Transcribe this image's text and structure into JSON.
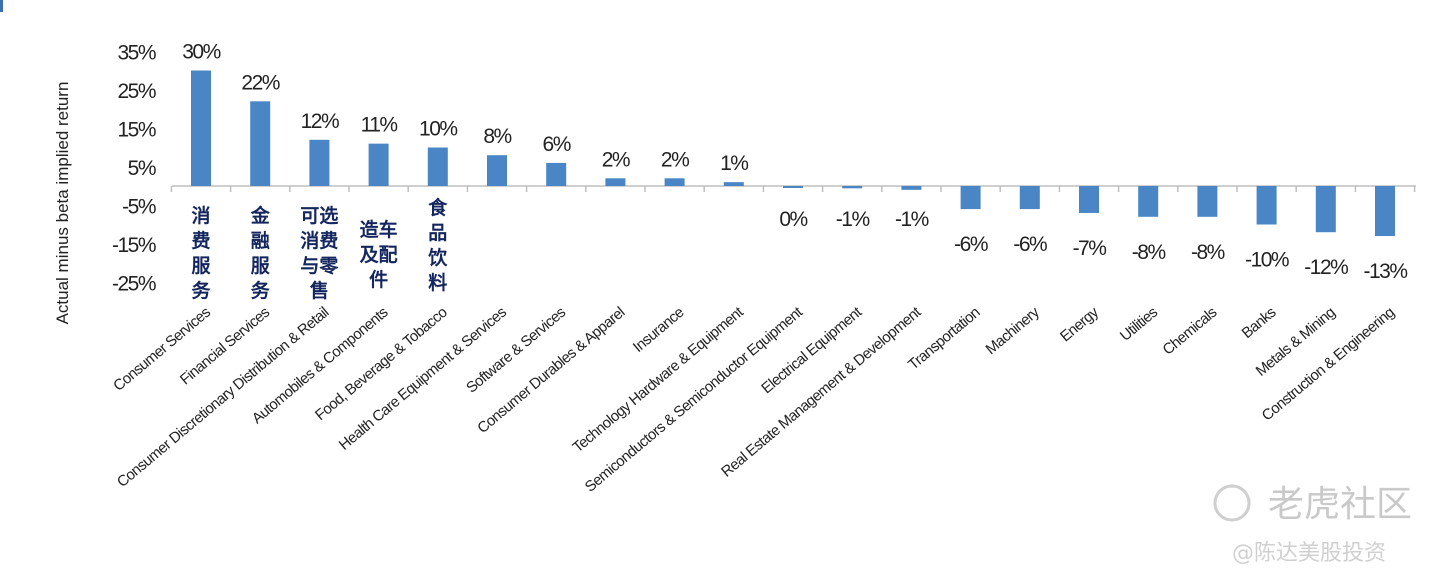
{
  "chart_data": {
    "type": "bar",
    "title": "",
    "xlabel": "",
    "ylabel": "Actual minus beta implied return",
    "ylim": [
      -25,
      35
    ],
    "yticks": [
      "35%",
      "25%",
      "15%",
      "5%",
      "-5%",
      "-15%",
      "-25%"
    ],
    "grid": false,
    "bar_color": "#4a86c5",
    "categories": [
      "Consumer Services",
      "Financial Services",
      "Consumer Discretionary Distribution & Retail",
      "Automobiles & Components",
      "Food, Beverage & Tobacco",
      "Health Care Equipment & Services",
      "Software & Services",
      "Consumer Durables & Apparel",
      "Insurance",
      "Technology Hardware & Equipment",
      "Semiconductors & Semiconductor Equipment",
      "Electrical Equipment",
      "Real Estate Management & Development",
      "Transportation",
      "Machinery",
      "Energy",
      "Utilities",
      "Chemicals",
      "Banks",
      "Metals & Mining",
      "Construction & Engineering"
    ],
    "values": [
      30,
      22,
      12,
      11,
      10,
      8,
      6,
      2,
      2,
      1,
      -0.4,
      -0.6,
      -1,
      -6,
      -6,
      -7,
      -8,
      -8,
      -10,
      -12,
      -13
    ],
    "data_labels": [
      "30%",
      "22%",
      "12%",
      "11%",
      "10%",
      "8%",
      "6%",
      "2%",
      "2%",
      "1%",
      "0%",
      "-1%",
      "-1%",
      "-6%",
      "-6%",
      "-7%",
      "-8%",
      "-8%",
      "-10%",
      "-12%",
      "-13%"
    ],
    "annotations": [
      {
        "category": "Consumer Services",
        "lines": [
          "消",
          "费",
          "服",
          "务"
        ]
      },
      {
        "category": "Financial Services",
        "lines": [
          "金",
          "融",
          "服",
          "务"
        ]
      },
      {
        "category": "Consumer Discretionary Distribution & Retail",
        "lines": [
          "可选",
          "消费",
          "与零",
          "售"
        ]
      },
      {
        "category": "Automobiles & Components",
        "lines": [
          "造车",
          "及配",
          "件"
        ]
      },
      {
        "category": "Food, Beverage & Tobacco",
        "lines": [
          "食",
          "品",
          "饮",
          "料"
        ]
      }
    ]
  },
  "watermark": {
    "brand": "老虎社区",
    "author": "@陈达美股投资"
  }
}
